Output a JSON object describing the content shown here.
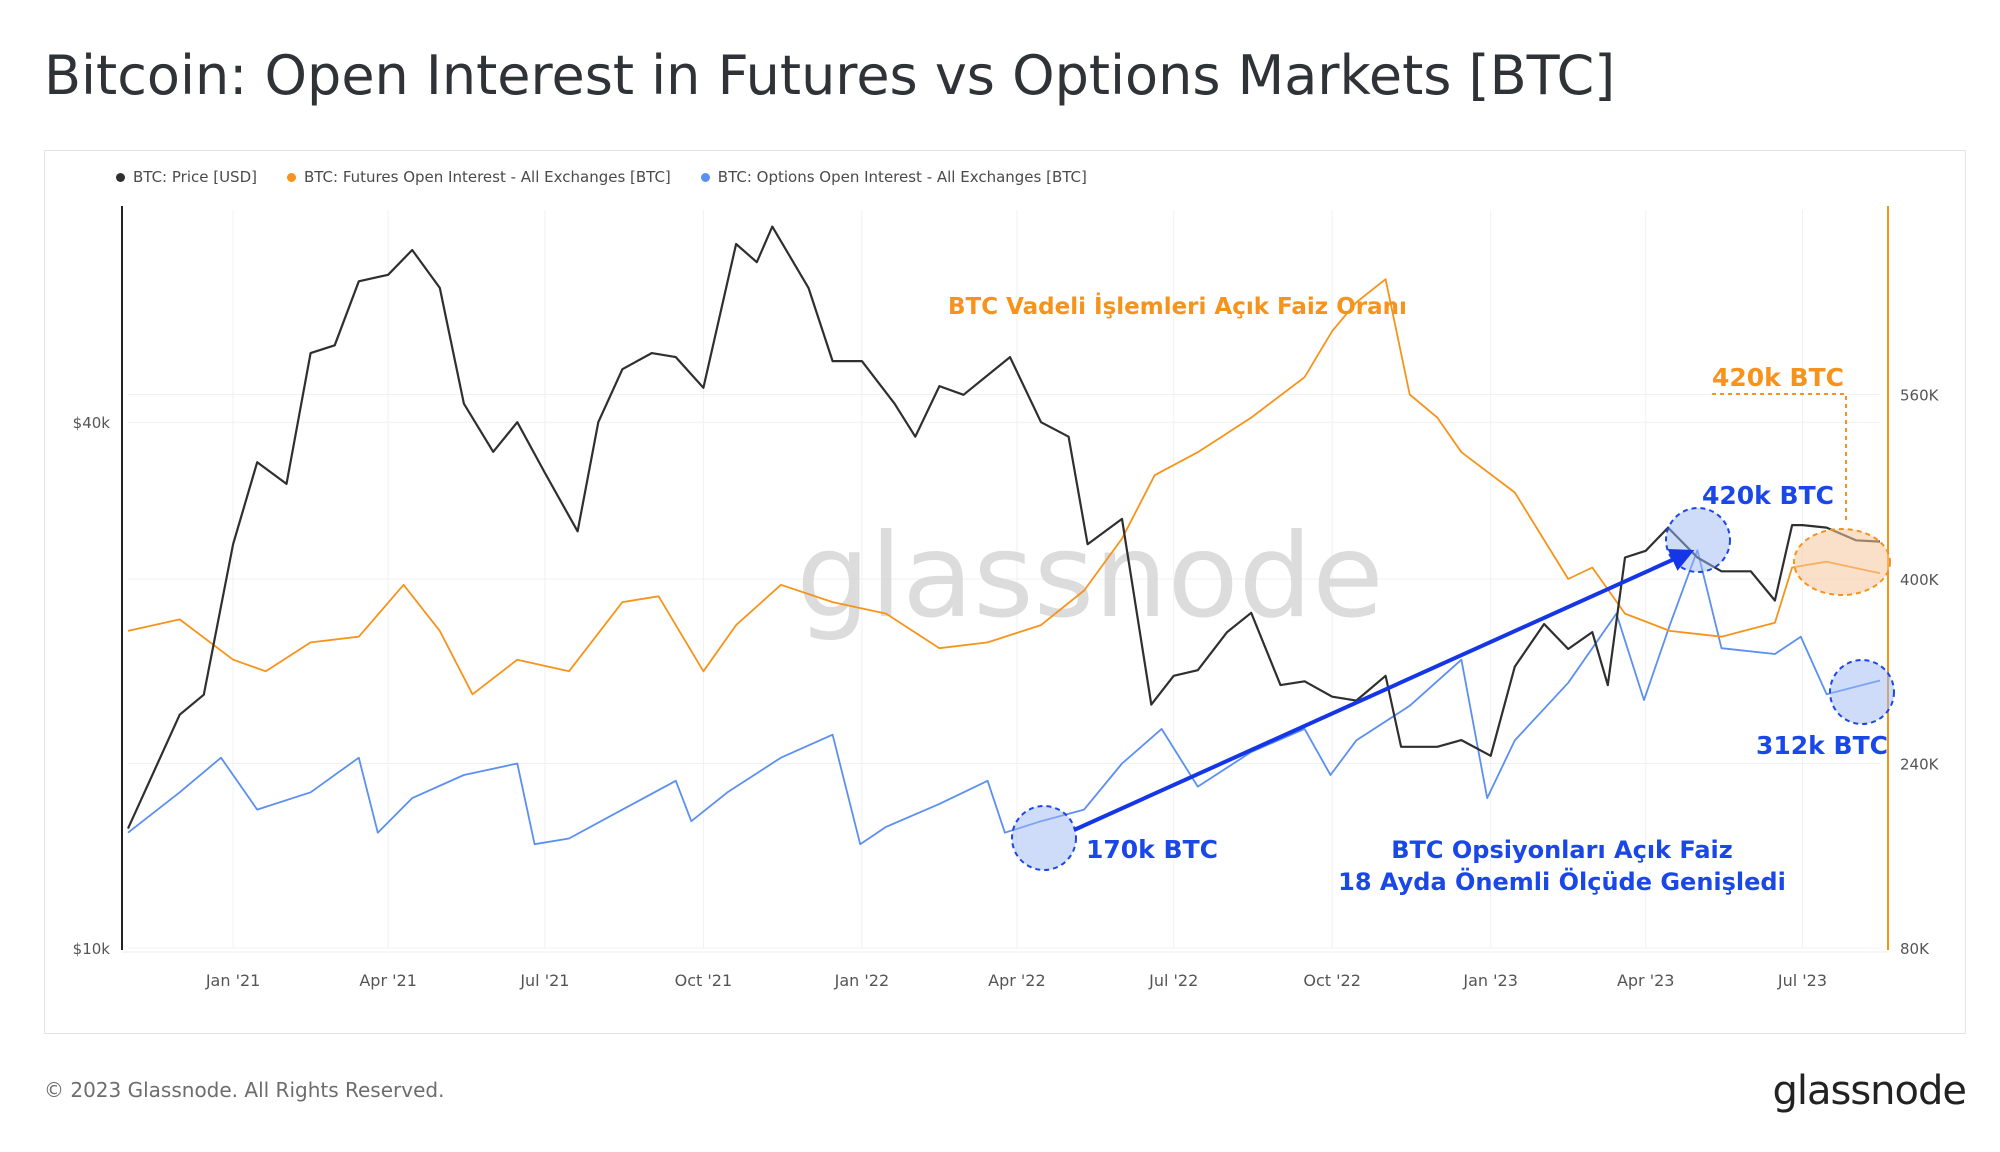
{
  "title": "Bitcoin: Open Interest in Futures vs Options Markets [BTC]",
  "legend": [
    {
      "label": "BTC: Price [USD]",
      "color": "#2f2f2f"
    },
    {
      "label": "BTC: Futures Open Interest - All Exchanges [BTC]",
      "color": "#f7931a"
    },
    {
      "label": "BTC: Options Open Interest - All Exchanges [BTC]",
      "color": "#5b8ff0"
    }
  ],
  "watermark": "glassnode",
  "footer": {
    "copyright": "© 2023 Glassnode. All Rights Reserved.",
    "brand": "glassnode"
  },
  "annotations": {
    "futures_title": "BTC Vadeli İşlemleri Açık Faiz Oranı",
    "futures_peak_label": "420k BTC",
    "options_peak_label": "420k BTC",
    "options_end_label": "312k BTC",
    "options_start_label": "170k BTC",
    "options_note_line1": "BTC Opsiyonları Açık Faiz",
    "options_note_line2": "18 Ayda Önemli Ölçüde Genişledi"
  },
  "chart_data": {
    "type": "line",
    "x_ticks": [
      "Jan '21",
      "Apr '21",
      "Jul '21",
      "Oct '21",
      "Jan '22",
      "Apr '22",
      "Jul '22",
      "Oct '22",
      "Jan '23",
      "Apr '23",
      "Jul '23"
    ],
    "x_range": [
      "2020-11-01",
      "2023-08-15"
    ],
    "y_left": {
      "label": "Price [USD]",
      "scale": "log",
      "ticks": [
        "$10k",
        "$40k"
      ],
      "range": [
        10000,
        70000
      ]
    },
    "y_right": {
      "label": "Open Interest [BTC]",
      "scale": "linear",
      "ticks": [
        "80K",
        "240K",
        "400K",
        "560K"
      ],
      "range": [
        80000,
        720000
      ]
    },
    "series": [
      {
        "name": "BTC: Price [USD]",
        "axis": "left",
        "color": "#2f2f2f",
        "x": [
          "2020-11-01",
          "2020-12-01",
          "2020-12-15",
          "2021-01-01",
          "2021-01-15",
          "2021-02-01",
          "2021-02-15",
          "2021-03-01",
          "2021-03-15",
          "2021-04-01",
          "2021-04-15",
          "2021-05-01",
          "2021-05-15",
          "2021-06-01",
          "2021-06-15",
          "2021-07-01",
          "2021-07-20",
          "2021-08-01",
          "2021-08-15",
          "2021-09-01",
          "2021-09-15",
          "2021-10-01",
          "2021-10-20",
          "2021-11-01",
          "2021-11-10",
          "2021-12-01",
          "2021-12-15",
          "2022-01-01",
          "2022-01-20",
          "2022-02-01",
          "2022-02-15",
          "2022-03-01",
          "2022-03-28",
          "2022-04-15",
          "2022-05-01",
          "2022-05-12",
          "2022-06-01",
          "2022-06-18",
          "2022-07-01",
          "2022-07-15",
          "2022-08-01",
          "2022-08-15",
          "2022-09-01",
          "2022-09-15",
          "2022-10-01",
          "2022-10-15",
          "2022-11-01",
          "2022-11-10",
          "2022-12-01",
          "2022-12-15",
          "2023-01-01",
          "2023-01-15",
          "2023-02-01",
          "2023-02-15",
          "2023-03-01",
          "2023-03-10",
          "2023-03-20",
          "2023-04-01",
          "2023-04-14",
          "2023-05-01",
          "2023-05-15",
          "2023-06-01",
          "2023-06-15",
          "2023-06-25",
          "2023-07-01",
          "2023-07-15",
          "2023-08-01",
          "2023-08-15"
        ],
        "y": [
          13700,
          18500,
          19500,
          29000,
          36000,
          34000,
          48000,
          49000,
          58000,
          59000,
          63000,
          57000,
          42000,
          37000,
          40000,
          35000,
          30000,
          40000,
          46000,
          48000,
          47500,
          43800,
          64000,
          61000,
          67000,
          57000,
          47000,
          47000,
          42000,
          38500,
          44000,
          43000,
          47500,
          40000,
          38500,
          29000,
          31000,
          19000,
          20500,
          20800,
          23000,
          24200,
          20000,
          20200,
          19400,
          19200,
          20500,
          17000,
          17000,
          17300,
          16600,
          21000,
          23500,
          22000,
          23000,
          20000,
          28000,
          28500,
          30300,
          28000,
          27000,
          27000,
          25000,
          30500,
          30500,
          30300,
          29300,
          29200
        ]
      },
      {
        "name": "BTC: Futures Open Interest - All Exchanges [BTC]",
        "axis": "right",
        "color": "#f7931a",
        "x": [
          "2020-11-01",
          "2020-12-01",
          "2021-01-01",
          "2021-01-20",
          "2021-02-15",
          "2021-03-15",
          "2021-04-10",
          "2021-05-01",
          "2021-05-20",
          "2021-06-15",
          "2021-07-15",
          "2021-08-15",
          "2021-09-05",
          "2021-10-01",
          "2021-10-20",
          "2021-11-15",
          "2021-12-15",
          "2022-01-15",
          "2022-02-15",
          "2022-03-15",
          "2022-04-15",
          "2022-05-10",
          "2022-06-01",
          "2022-06-20",
          "2022-07-15",
          "2022-08-15",
          "2022-09-15",
          "2022-10-01",
          "2022-10-15",
          "2022-11-01",
          "2022-11-15",
          "2022-12-01",
          "2022-12-15",
          "2023-01-15",
          "2023-02-15",
          "2023-03-01",
          "2023-03-20",
          "2023-04-15",
          "2023-05-15",
          "2023-06-15",
          "2023-06-25",
          "2023-07-15",
          "2023-08-15"
        ],
        "y": [
          355000,
          365000,
          330000,
          320000,
          345000,
          350000,
          395000,
          355000,
          300000,
          330000,
          320000,
          380000,
          385000,
          320000,
          360000,
          395000,
          380000,
          370000,
          340000,
          345000,
          360000,
          390000,
          435000,
          490000,
          510000,
          540000,
          575000,
          615000,
          640000,
          660000,
          560000,
          540000,
          510000,
          475000,
          400000,
          410000,
          370000,
          355000,
          350000,
          362000,
          410000,
          415000,
          405000
        ]
      },
      {
        "name": "BTC: Options Open Interest - All Exchanges [BTC]",
        "axis": "right",
        "color": "#5b8ff0",
        "x": [
          "2020-11-01",
          "2020-12-01",
          "2020-12-25",
          "2021-01-15",
          "2021-02-15",
          "2021-03-15",
          "2021-03-26",
          "2021-04-15",
          "2021-05-15",
          "2021-06-15",
          "2021-06-25",
          "2021-07-15",
          "2021-08-15",
          "2021-09-15",
          "2021-09-24",
          "2021-10-15",
          "2021-11-15",
          "2021-12-15",
          "2021-12-31",
          "2022-01-15",
          "2022-02-15",
          "2022-03-15",
          "2022-03-25",
          "2022-04-15",
          "2022-05-10",
          "2022-06-01",
          "2022-06-24",
          "2022-07-15",
          "2022-08-15",
          "2022-09-15",
          "2022-09-30",
          "2022-10-15",
          "2022-11-15",
          "2022-12-15",
          "2022-12-30",
          "2023-01-15",
          "2023-02-15",
          "2023-03-15",
          "2023-03-31",
          "2023-04-15",
          "2023-05-01",
          "2023-05-15",
          "2023-06-15",
          "2023-06-30",
          "2023-07-15",
          "2023-08-15"
        ],
        "y": [
          180000,
          215000,
          245000,
          200000,
          215000,
          245000,
          180000,
          210000,
          230000,
          240000,
          170000,
          175000,
          200000,
          225000,
          190000,
          215000,
          245000,
          265000,
          170000,
          185000,
          205000,
          225000,
          180000,
          190000,
          200000,
          240000,
          270000,
          220000,
          250000,
          270000,
          230000,
          260000,
          290000,
          330000,
          210000,
          260000,
          310000,
          370000,
          295000,
          360000,
          425000,
          340000,
          335000,
          350000,
          300000,
          312000
        ]
      }
    ]
  }
}
